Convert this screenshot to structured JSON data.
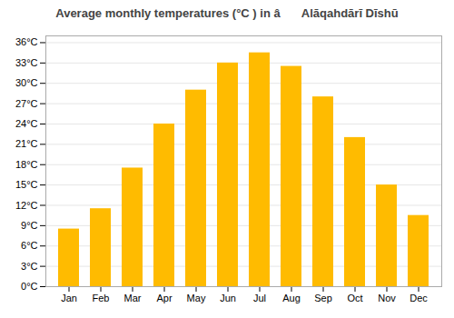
{
  "chart_data": {
    "type": "bar",
    "title": "Average monthly temperatures (°C ) in â Alāqahdārī Dīshū",
    "categories": [
      "Jan",
      "Feb",
      "Mar",
      "Apr",
      "May",
      "Jun",
      "Jul",
      "Aug",
      "Sep",
      "Oct",
      "Nov",
      "Dec"
    ],
    "values": [
      8.5,
      11.5,
      17.5,
      24.0,
      29.0,
      33.0,
      34.5,
      32.5,
      28.0,
      22.0,
      15.0,
      10.5
    ],
    "color": "#FFBB00",
    "ylim": [
      0,
      37
    ],
    "yticks": [
      {
        "value": 0,
        "label": "0°C"
      },
      {
        "value": 3,
        "label": "3°C"
      },
      {
        "value": 6,
        "label": "6°C"
      },
      {
        "value": 9,
        "label": "9°C"
      },
      {
        "value": 12,
        "label": "12°C"
      },
      {
        "value": 15,
        "label": "15°C"
      },
      {
        "value": 18,
        "label": "18°C"
      },
      {
        "value": 21,
        "label": "21°C"
      },
      {
        "value": 24,
        "label": "24°C"
      },
      {
        "value": 27,
        "label": "27°C"
      },
      {
        "value": 30,
        "label": "30°C"
      },
      {
        "value": 33,
        "label": "33°C"
      },
      {
        "value": 36,
        "label": "36°C"
      }
    ],
    "grid": true
  }
}
